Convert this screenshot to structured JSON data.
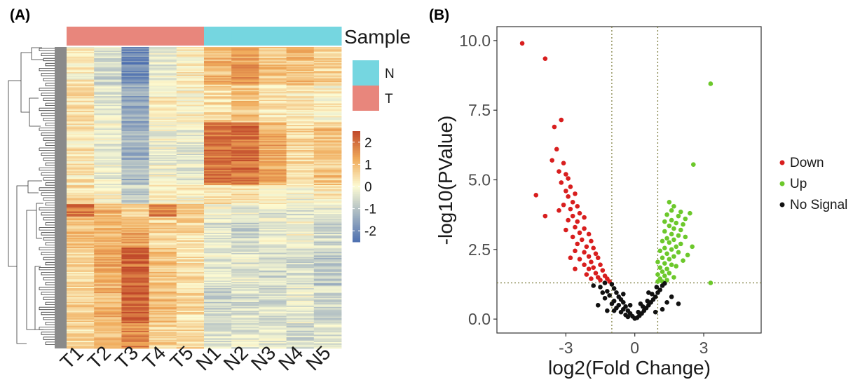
{
  "panels": {
    "a_label": "(A)",
    "b_label": "(B)"
  },
  "colors": {
    "sample_T": "#e8867c",
    "sample_N": "#75d6e0",
    "down": "#d81e1e",
    "up": "#6cc82b",
    "no_signal": "#111111",
    "high": "#c0482a",
    "mid": "#fcfbd3",
    "low": "#4e70b0"
  },
  "chart_data": [
    {
      "type": "heatmap",
      "columns": [
        "T1",
        "T2",
        "T3",
        "T4",
        "T5",
        "N1",
        "N2",
        "N3",
        "N4",
        "N5"
      ],
      "annotation": {
        "title": "Sample",
        "groups": [
          "T",
          "T",
          "T",
          "T",
          "T",
          "N",
          "N",
          "N",
          "N",
          "N"
        ],
        "legend": [
          {
            "label": "N",
            "color": "#75d6e0"
          },
          {
            "label": "T",
            "color": "#e8867c"
          }
        ]
      },
      "color_scale": {
        "ticks": [
          2,
          1,
          0,
          -1,
          -2
        ],
        "tick_labels": [
          "2",
          "1",
          "0",
          "-1",
          "-2"
        ],
        "range": [
          -2.5,
          2.5
        ]
      },
      "row_count": 240,
      "row_blocks": [
        {
          "rows": 30,
          "values": [
            0.2,
            -0.6,
            -2.0,
            -0.3,
            0.2,
            1.0,
            1.3,
            0.8,
            0.9,
            0.6
          ]
        },
        {
          "rows": 30,
          "values": [
            0.4,
            -0.4,
            -1.5,
            0.2,
            0.1,
            0.5,
            0.8,
            0.4,
            0.3,
            0.2
          ]
        },
        {
          "rows": 50,
          "values": [
            0.3,
            -0.2,
            -1.2,
            -0.1,
            -0.3,
            1.9,
            2.0,
            1.2,
            0.5,
            0.8
          ]
        },
        {
          "rows": 15,
          "values": [
            0.5,
            0.0,
            -0.8,
            0.0,
            0.1,
            0.4,
            0.3,
            0.2,
            -0.1,
            0.3
          ]
        },
        {
          "rows": 10,
          "values": [
            2.0,
            1.0,
            0.7,
            1.8,
            0.6,
            -0.2,
            -0.2,
            -0.3,
            -0.4,
            -0.2
          ]
        },
        {
          "rows": 25,
          "values": [
            0.9,
            1.0,
            1.3,
            0.6,
            0.5,
            -0.4,
            -0.7,
            -0.3,
            -0.1,
            -0.6
          ]
        },
        {
          "rows": 30,
          "values": [
            0.6,
            1.2,
            2.0,
            0.8,
            0.4,
            -0.3,
            -0.4,
            -0.6,
            -0.5,
            -0.9
          ]
        },
        {
          "rows": 30,
          "values": [
            0.6,
            1.1,
            2.2,
            0.9,
            0.5,
            -0.7,
            -0.5,
            -0.5,
            -0.3,
            -0.6
          ]
        },
        {
          "rows": 20,
          "values": [
            0.5,
            0.9,
            1.6,
            0.6,
            0.6,
            -0.5,
            -0.3,
            -0.4,
            -0.6,
            -0.5
          ]
        }
      ]
    },
    {
      "type": "scatter",
      "xlabel": "log2(Fold Change)",
      "ylabel": "-log10(PValue)",
      "xlim": [
        -6,
        5.5
      ],
      "ylim": [
        -0.5,
        10.5
      ],
      "x_ticks": [
        -3,
        0,
        3
      ],
      "y_ticks": [
        0.0,
        2.5,
        5.0,
        7.5,
        10.0
      ],
      "y_tick_labels": [
        "0.0",
        "2.5",
        "5.0",
        "7.5",
        "10.0"
      ],
      "thresholds": {
        "x": [
          -1,
          1
        ],
        "y": 1.3
      },
      "grid": false,
      "legend_position": "right",
      "series": [
        {
          "name": "Down",
          "color": "#d81e1e",
          "points": [
            [
              -4.9,
              9.9
            ],
            [
              -3.9,
              9.35
            ],
            [
              -3.2,
              7.15
            ],
            [
              -3.5,
              6.9
            ],
            [
              -3.4,
              6.1
            ],
            [
              -3.6,
              5.7
            ],
            [
              -3.1,
              5.6
            ],
            [
              -3.3,
              5.3
            ],
            [
              -3.0,
              5.2
            ],
            [
              -2.9,
              5.05
            ],
            [
              -3.2,
              4.9
            ],
            [
              -2.8,
              4.75
            ],
            [
              -3.0,
              4.6
            ],
            [
              -2.6,
              4.5
            ],
            [
              -2.9,
              4.4
            ],
            [
              -4.3,
              4.45
            ],
            [
              -2.7,
              4.2
            ],
            [
              -3.1,
              4.1
            ],
            [
              -2.5,
              4.05
            ],
            [
              -2.8,
              3.95
            ],
            [
              -3.3,
              3.9
            ],
            [
              -2.4,
              3.8
            ],
            [
              -2.7,
              3.7
            ],
            [
              -3.9,
              3.7
            ],
            [
              -2.2,
              3.65
            ],
            [
              -2.9,
              3.55
            ],
            [
              -2.5,
              3.5
            ],
            [
              -2.6,
              3.3
            ],
            [
              -2.2,
              3.25
            ],
            [
              -3.0,
              3.2
            ],
            [
              -2.4,
              3.1
            ],
            [
              -2.0,
              3.05
            ],
            [
              -2.7,
              2.95
            ],
            [
              -2.3,
              2.85
            ],
            [
              -1.9,
              2.8
            ],
            [
              -2.5,
              2.7
            ],
            [
              -2.1,
              2.6
            ],
            [
              -1.8,
              2.55
            ],
            [
              -2.6,
              2.45
            ],
            [
              -2.2,
              2.4
            ],
            [
              -1.7,
              2.35
            ],
            [
              -2.0,
              2.25
            ],
            [
              -2.4,
              2.15
            ],
            [
              -1.6,
              2.2
            ],
            [
              -1.9,
              2.05
            ],
            [
              -2.2,
              1.95
            ],
            [
              -1.5,
              1.95
            ],
            [
              -1.8,
              1.85
            ],
            [
              -2.0,
              1.8
            ],
            [
              -1.4,
              1.75
            ],
            [
              -1.7,
              1.65
            ],
            [
              -2.1,
              1.6
            ],
            [
              -1.3,
              1.55
            ],
            [
              -1.6,
              1.5
            ],
            [
              -1.9,
              1.45
            ],
            [
              -1.2,
              1.45
            ],
            [
              -1.5,
              1.4
            ],
            [
              -1.1,
              1.35
            ],
            [
              -2.6,
              1.8
            ],
            [
              -2.8,
              2.2
            ]
          ]
        },
        {
          "name": "Up",
          "color": "#6cc82b",
          "points": [
            [
              3.3,
              8.45
            ],
            [
              2.55,
              5.55
            ],
            [
              1.5,
              4.2
            ],
            [
              1.7,
              4.05
            ],
            [
              1.6,
              3.9
            ],
            [
              2.0,
              3.85
            ],
            [
              2.4,
              3.8
            ],
            [
              1.4,
              3.75
            ],
            [
              1.9,
              3.7
            ],
            [
              2.2,
              3.6
            ],
            [
              1.6,
              3.55
            ],
            [
              1.3,
              3.5
            ],
            [
              1.8,
              3.45
            ],
            [
              2.1,
              3.4
            ],
            [
              1.5,
              3.35
            ],
            [
              1.7,
              3.25
            ],
            [
              2.0,
              3.2
            ],
            [
              1.3,
              3.15
            ],
            [
              1.6,
              3.05
            ],
            [
              1.9,
              3.0
            ],
            [
              2.2,
              2.95
            ],
            [
              1.4,
              2.9
            ],
            [
              1.7,
              2.85
            ],
            [
              1.2,
              2.8
            ],
            [
              1.5,
              2.75
            ],
            [
              2.0,
              2.7
            ],
            [
              1.8,
              2.6
            ],
            [
              1.3,
              2.55
            ],
            [
              1.6,
              2.5
            ],
            [
              1.1,
              2.45
            ],
            [
              1.9,
              2.4
            ],
            [
              1.4,
              2.35
            ],
            [
              1.7,
              2.25
            ],
            [
              1.2,
              2.2
            ],
            [
              1.5,
              2.15
            ],
            [
              2.1,
              2.1
            ],
            [
              1.0,
              2.05
            ],
            [
              1.3,
              2.0
            ],
            [
              1.6,
              1.95
            ],
            [
              1.8,
              1.9
            ],
            [
              1.1,
              1.85
            ],
            [
              1.4,
              1.8
            ],
            [
              1.2,
              1.7
            ],
            [
              1.5,
              1.65
            ],
            [
              1.0,
              1.6
            ],
            [
              1.3,
              1.55
            ],
            [
              1.7,
              1.5
            ],
            [
              1.1,
              1.45
            ],
            [
              1.4,
              1.4
            ],
            [
              1.2,
              1.35
            ],
            [
              3.3,
              1.3
            ],
            [
              1.0,
              1.35
            ],
            [
              2.3,
              2.3
            ],
            [
              2.5,
              2.6
            ]
          ]
        },
        {
          "name": "No Signal",
          "color": "#111111",
          "points": [
            [
              -1.0,
              1.25
            ],
            [
              -0.9,
              1.1
            ],
            [
              -1.2,
              1.0
            ],
            [
              -0.8,
              0.95
            ],
            [
              -1.1,
              0.85
            ],
            [
              -0.7,
              0.8
            ],
            [
              -1.3,
              0.75
            ],
            [
              -0.6,
              0.7
            ],
            [
              -0.9,
              0.65
            ],
            [
              -0.5,
              0.6
            ],
            [
              -1.0,
              0.55
            ],
            [
              -0.7,
              0.5
            ],
            [
              -0.4,
              0.45
            ],
            [
              -0.8,
              0.4
            ],
            [
              -0.5,
              0.35
            ],
            [
              -0.3,
              0.3
            ],
            [
              -0.6,
              0.25
            ],
            [
              -0.2,
              0.2
            ],
            [
              -0.4,
              0.15
            ],
            [
              -0.1,
              0.1
            ],
            [
              -0.3,
              0.08
            ],
            [
              0.0,
              0.02
            ],
            [
              0.1,
              0.05
            ],
            [
              0.2,
              0.12
            ],
            [
              0.3,
              0.2
            ],
            [
              0.15,
              0.25
            ],
            [
              0.4,
              0.3
            ],
            [
              0.5,
              0.4
            ],
            [
              0.35,
              0.45
            ],
            [
              0.6,
              0.5
            ],
            [
              0.7,
              0.6
            ],
            [
              0.55,
              0.65
            ],
            [
              0.8,
              0.7
            ],
            [
              0.9,
              0.8
            ],
            [
              0.75,
              0.9
            ],
            [
              1.0,
              0.95
            ],
            [
              1.1,
              1.05
            ],
            [
              0.95,
              1.15
            ],
            [
              1.2,
              1.2
            ],
            [
              -1.5,
              1.15
            ],
            [
              -1.4,
              0.95
            ],
            [
              1.6,
              0.8
            ],
            [
              1.4,
              0.6
            ],
            [
              1.9,
              0.55
            ],
            [
              -1.6,
              0.5
            ],
            [
              -1.2,
              0.3
            ],
            [
              1.2,
              0.35
            ],
            [
              -0.9,
              0.3
            ],
            [
              0.9,
              0.25
            ],
            [
              -1.8,
              1.2
            ],
            [
              -0.2,
              0.5
            ],
            [
              0.25,
              0.55
            ],
            [
              -0.5,
              0.9
            ],
            [
              0.6,
              0.95
            ],
            [
              -1.3,
              1.3
            ],
            [
              1.3,
              1.28
            ]
          ]
        }
      ]
    }
  ]
}
